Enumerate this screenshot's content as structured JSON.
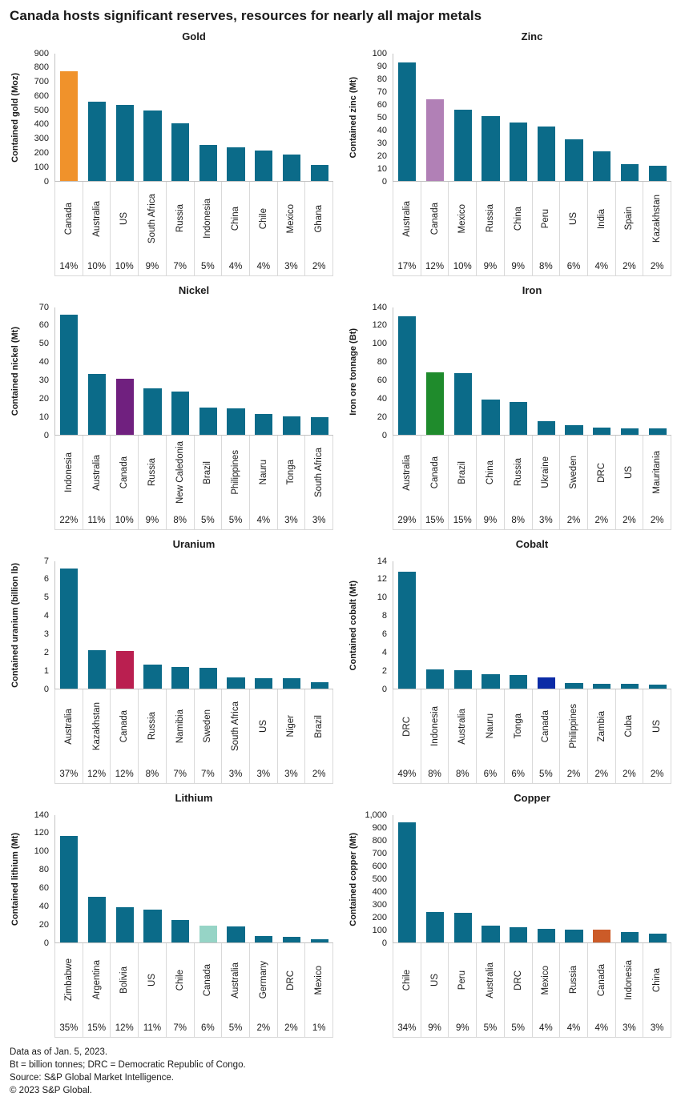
{
  "page": {
    "title": "Canada hosts significant reserves, resources for nearly all major metals",
    "footer_lines": [
      "Data as of Jan. 5, 2023.",
      "Bt = billion tonnes; DRC = Democratic Republic of Congo.",
      "Source: S&P Global Market Intelligence.",
      "© 2023 S&P Global."
    ]
  },
  "colors": {
    "default_bar": "#0B6B89",
    "axis_line": "#c2c2c2",
    "table_border": "#d9d9d9",
    "text": "#1a1a1a"
  },
  "chart_data": [
    {
      "type": "bar",
      "title": "Gold",
      "ylabel": "Contained gold (Moz)",
      "ylim": [
        0,
        900
      ],
      "ytick_step": 100,
      "grid": false,
      "categories": [
        "Canada",
        "Australia",
        "US",
        "South Africa",
        "Russia",
        "Indonesia",
        "China",
        "Chile",
        "Mexico",
        "Ghana"
      ],
      "values": [
        775,
        560,
        535,
        500,
        405,
        255,
        238,
        215,
        185,
        115
      ],
      "share_percent": [
        "14%",
        "10%",
        "10%",
        "9%",
        "7%",
        "5%",
        "4%",
        "4%",
        "3%",
        "2%"
      ],
      "highlight": {
        "category": "Canada",
        "color": "#F0922B"
      }
    },
    {
      "type": "bar",
      "title": "Zinc",
      "ylabel": "Contained zinc (Mt)",
      "ylim": [
        0,
        100
      ],
      "ytick_step": 10,
      "grid": false,
      "categories": [
        "Australia",
        "Canada",
        "Mexico",
        "Russia",
        "China",
        "Peru",
        "US",
        "India",
        "Spain",
        "Kazakhstan"
      ],
      "values": [
        93,
        64,
        56,
        51,
        46,
        43,
        33,
        23,
        13,
        12
      ],
      "share_percent": [
        "17%",
        "12%",
        "10%",
        "9%",
        "9%",
        "8%",
        "6%",
        "4%",
        "2%",
        "2%"
      ],
      "highlight": {
        "category": "Canada",
        "color": "#B180B6"
      }
    },
    {
      "type": "bar",
      "title": "Nickel",
      "ylabel": "Contained nickel (Mt)",
      "ylim": [
        0,
        70
      ],
      "ytick_step": 10,
      "grid": false,
      "categories": [
        "Indonesia",
        "Australia",
        "Canada",
        "Russia",
        "New Caledonia",
        "Brazil",
        "Philippines",
        "Nauru",
        "Tonga",
        "South Africa"
      ],
      "values": [
        66,
        33.5,
        31,
        25.5,
        24,
        15,
        14.5,
        11.5,
        10,
        9.5
      ],
      "share_percent": [
        "22%",
        "11%",
        "10%",
        "9%",
        "8%",
        "5%",
        "5%",
        "4%",
        "3%",
        "3%"
      ],
      "highlight": {
        "category": "Canada",
        "color": "#70207F"
      }
    },
    {
      "type": "bar",
      "title": "Iron",
      "ylabel": "Iron ore tonnage (Bt)",
      "ylim": [
        0,
        140
      ],
      "ytick_step": 20,
      "grid": false,
      "categories": [
        "Australia",
        "Canada",
        "Brazil",
        "China",
        "Russia",
        "Ukraine",
        "Sweden",
        "DRC",
        "US",
        "Mauritania"
      ],
      "values": [
        130,
        69,
        68,
        39,
        36,
        15,
        11,
        8,
        7,
        7
      ],
      "share_percent": [
        "29%",
        "15%",
        "15%",
        "9%",
        "8%",
        "3%",
        "2%",
        "2%",
        "2%",
        "2%"
      ],
      "highlight": {
        "category": "Canada",
        "color": "#1F8B2C"
      }
    },
    {
      "type": "bar",
      "title": "Uranium",
      "ylabel": "Contained uranium (billion lb)",
      "ylim": [
        0,
        7
      ],
      "ytick_step": 1,
      "grid": false,
      "categories": [
        "Australia",
        "Kazakhstan",
        "Canada",
        "Russia",
        "Namibia",
        "Sweden",
        "South Africa",
        "US",
        "Niger",
        "Brazil"
      ],
      "values": [
        6.6,
        2.1,
        2.05,
        1.3,
        1.2,
        1.15,
        0.6,
        0.58,
        0.57,
        0.35
      ],
      "share_percent": [
        "37%",
        "12%",
        "12%",
        "8%",
        "7%",
        "7%",
        "3%",
        "3%",
        "3%",
        "2%"
      ],
      "highlight": {
        "category": "Canada",
        "color": "#BA1F50"
      }
    },
    {
      "type": "bar",
      "title": "Cobalt",
      "ylabel": "Contained cobalt (Mt)",
      "ylim": [
        0,
        14
      ],
      "ytick_step": 2,
      "grid": false,
      "categories": [
        "DRC",
        "Indonesia",
        "Australia",
        "Nauru",
        "Tonga",
        "Canada",
        "Philippines",
        "Zambia",
        "Cuba",
        "US"
      ],
      "values": [
        12.9,
        2.15,
        2.0,
        1.55,
        1.5,
        1.25,
        0.6,
        0.55,
        0.55,
        0.4
      ],
      "share_percent": [
        "49%",
        "8%",
        "8%",
        "6%",
        "6%",
        "5%",
        "2%",
        "2%",
        "2%",
        "2%"
      ],
      "highlight": {
        "category": "Canada",
        "color": "#0B2BA6"
      }
    },
    {
      "type": "bar",
      "title": "Lithium",
      "ylabel": "Contained lithium (Mt)",
      "ylim": [
        0,
        140
      ],
      "ytick_step": 20,
      "grid": false,
      "categories": [
        "Zimbabwe",
        "Argentina",
        "Bolivia",
        "US",
        "Chile",
        "Canada",
        "Australia",
        "Germany",
        "DRC",
        "Mexico"
      ],
      "values": [
        117,
        50,
        38.5,
        36,
        25,
        18.5,
        18,
        7,
        6.5,
        3.5
      ],
      "share_percent": [
        "35%",
        "15%",
        "12%",
        "11%",
        "7%",
        "6%",
        "5%",
        "2%",
        "2%",
        "1%"
      ],
      "highlight": {
        "category": "Canada",
        "color": "#96D4C6"
      }
    },
    {
      "type": "bar",
      "title": "Copper",
      "ylabel": "Contained copper (Mt)",
      "ylim": [
        0,
        1000
      ],
      "ytick_step": 100,
      "grid": false,
      "categories": [
        "Chile",
        "US",
        "Peru",
        "Australia",
        "DRC",
        "Mexico",
        "Russia",
        "Canada",
        "Indonesia",
        "China"
      ],
      "values": [
        945,
        240,
        235,
        135,
        122,
        105,
        100,
        98,
        83,
        72
      ],
      "share_percent": [
        "34%",
        "9%",
        "9%",
        "5%",
        "5%",
        "4%",
        "4%",
        "4%",
        "3%",
        "3%"
      ],
      "highlight": {
        "category": "Canada",
        "color": "#CC5B28"
      }
    }
  ]
}
